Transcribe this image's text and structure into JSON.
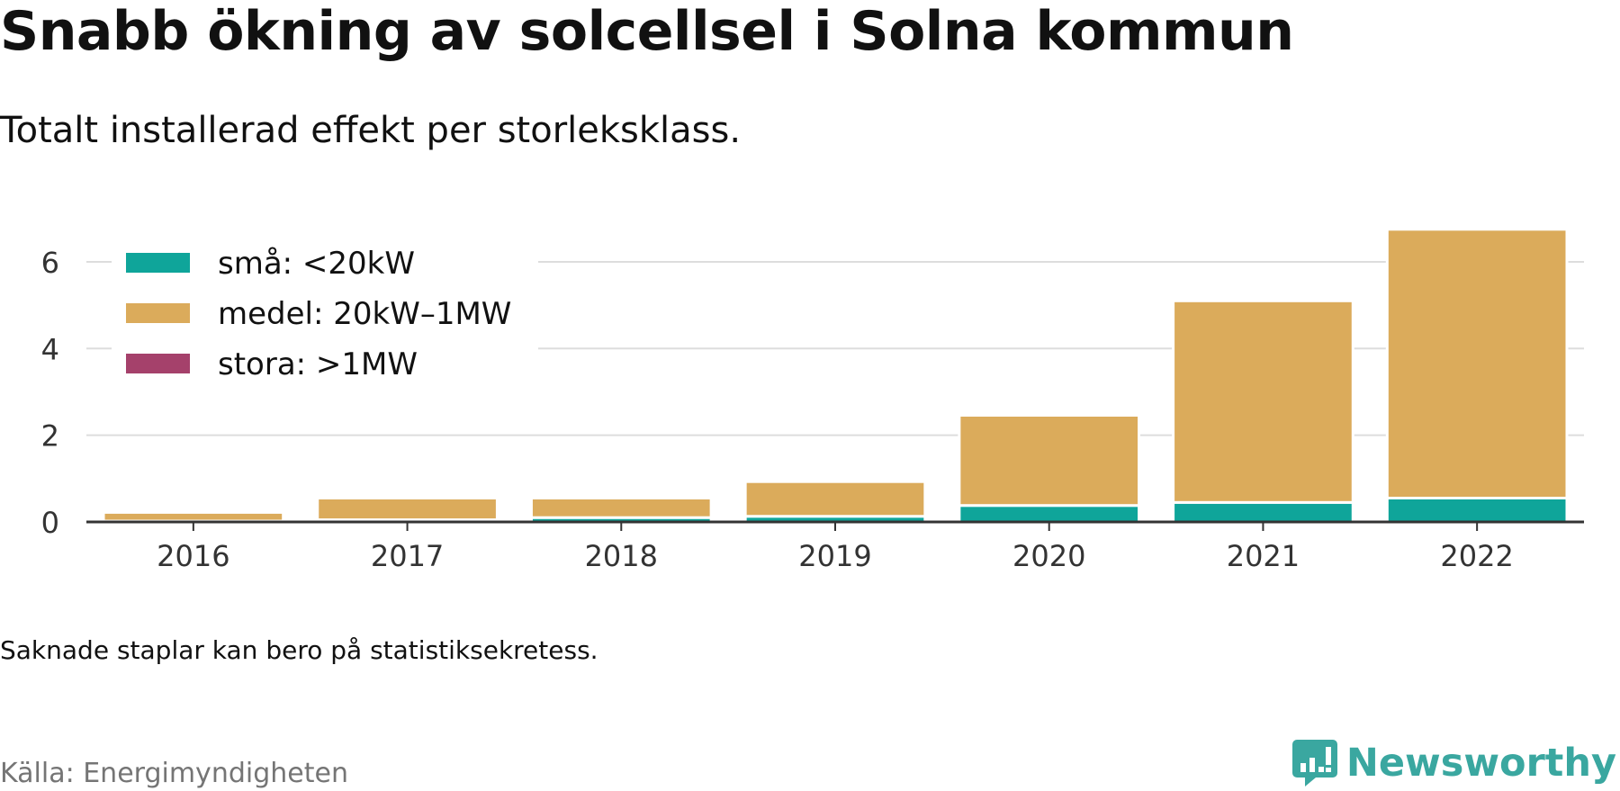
{
  "header": {
    "title": "Snabb ökning av solcellsel i Solna kommun",
    "subtitle": "Totalt installerad effekt per storleksklass."
  },
  "footer": {
    "note": "Saknade staplar kan bero på statistiksekretess.",
    "source": "Källa: Energimyndigheten",
    "logo_text": "Newsworthy"
  },
  "colors": {
    "small": "#0fa59a",
    "medium": "#dbab5b",
    "large": "#a5416b",
    "grid": "#dddddd",
    "axis": "#333333",
    "text": "#111111",
    "brand": "#3aa7a0"
  },
  "chart_data": {
    "type": "bar",
    "stacked": true,
    "categories": [
      "2016",
      "2017",
      "2018",
      "2019",
      "2020",
      "2021",
      "2022"
    ],
    "series": [
      {
        "name": "små: <20kW",
        "values": [
          0.02,
          0.05,
          0.1,
          0.13,
          0.38,
          0.45,
          0.55
        ]
      },
      {
        "name": "medel: 20kW–1MW",
        "values": [
          0.2,
          0.5,
          0.45,
          0.8,
          2.08,
          4.65,
          6.2
        ]
      },
      {
        "name": "stora: >1MW",
        "values": [
          0,
          0,
          0,
          0,
          0,
          0,
          0
        ]
      }
    ],
    "ylim": [
      0,
      6.85
    ],
    "yticks": [
      0,
      2,
      4,
      6
    ],
    "grid": true,
    "legend": "top-left"
  }
}
